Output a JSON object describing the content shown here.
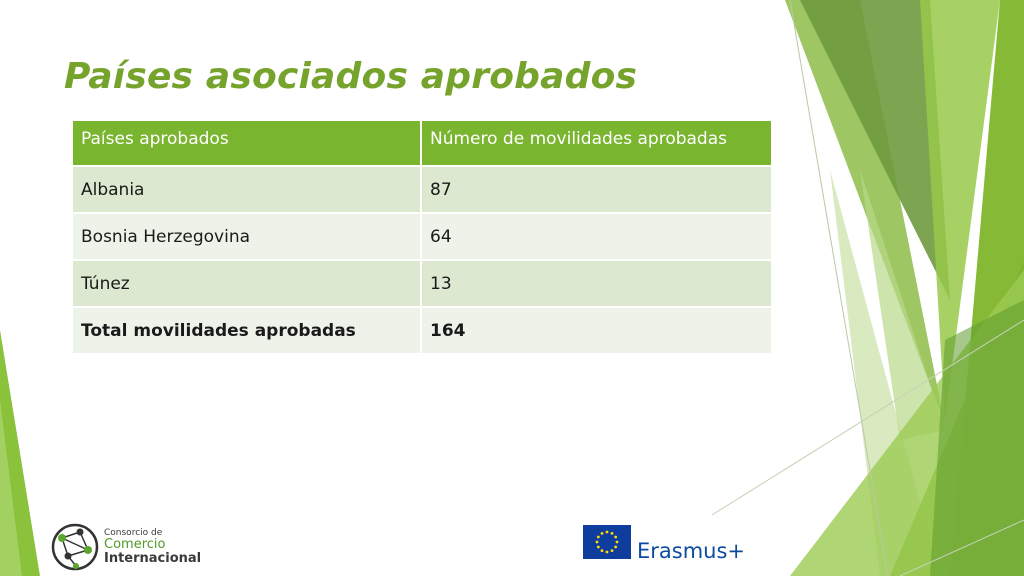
{
  "slide": {
    "title": "Países asociados aprobados"
  },
  "table": {
    "headers": [
      "Países aprobados",
      "Número de movilidades aprobadas"
    ],
    "rows": [
      {
        "country": "Albania",
        "count": "87"
      },
      {
        "country": "Bosnia Herzegovina",
        "count": "64"
      },
      {
        "country": "Túnez",
        "count": "13"
      }
    ],
    "total": {
      "label": "Total movilidades aprobadas",
      "value": "164"
    }
  },
  "logos": {
    "consorcio": {
      "line1": "Consorcio de",
      "line2": "Comercio",
      "line3": "Internacional"
    },
    "erasmus": {
      "text": "Erasmus+"
    }
  },
  "colors": {
    "title": "#76a32c",
    "header_bg": "#7ab530",
    "row_odd": "#dce8cf",
    "row_even": "#eef3e9",
    "erasmus_blue": "#0b4ba0",
    "eu_flag": "#0f3d9e",
    "eu_stars": "#ffdd00"
  }
}
